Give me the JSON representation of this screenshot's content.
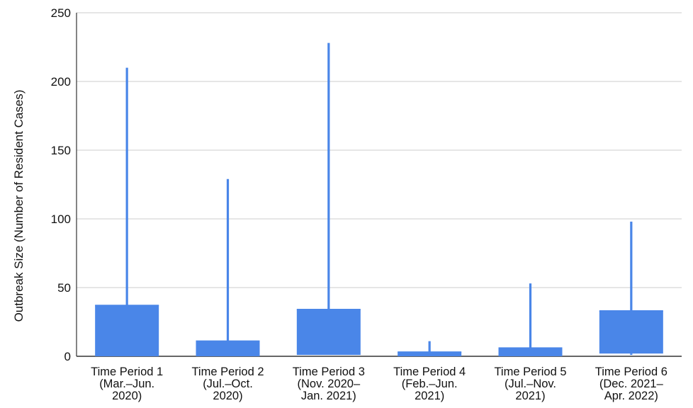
{
  "chart_data": {
    "type": "box",
    "title": "",
    "ylabel": "Outbreak Size (Number of Resident Cases)",
    "xlabel": "",
    "ylim": [
      0,
      250
    ],
    "yticks": [
      0,
      50,
      100,
      150,
      200,
      250
    ],
    "grid": true,
    "color": "#4a86e8",
    "categories": [
      [
        "Time Period 1",
        "(Mar.–Jun.",
        "2020)"
      ],
      [
        "Time Period 2",
        "(Jul.–Oct.",
        "2020)"
      ],
      [
        "Time Period 3",
        "(Nov. 2020–",
        "Jan. 2021)"
      ],
      [
        "Time Period 4",
        "(Feb.–Jun.",
        "2021)"
      ],
      [
        "Time Period 5",
        "(Jul.–Nov.",
        "2021)"
      ],
      [
        "Time Period 6",
        "(Dec. 2021–",
        "Apr. 2022)"
      ]
    ],
    "boxes": [
      {
        "min": 0,
        "q1": 0,
        "median": 37,
        "q3": 37,
        "max": 210
      },
      {
        "min": 0,
        "q1": 0,
        "median": 11,
        "q3": 11,
        "max": 129
      },
      {
        "min": 1,
        "q1": 1,
        "median": 34,
        "q3": 34,
        "max": 228
      },
      {
        "min": 0,
        "q1": 0,
        "median": 3,
        "q3": 3,
        "max": 11
      },
      {
        "min": 0,
        "q1": 0,
        "median": 6,
        "q3": 6,
        "max": 53
      },
      {
        "min": 1,
        "q1": 2,
        "median": 33,
        "q3": 33,
        "max": 98
      }
    ]
  }
}
